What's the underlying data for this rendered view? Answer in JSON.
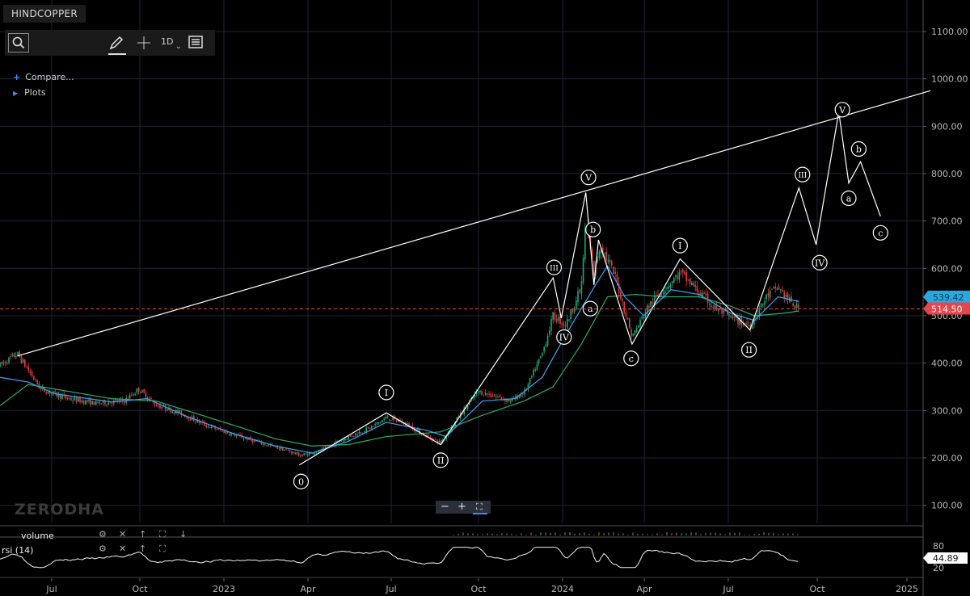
{
  "symbol": "HINDCOPPER",
  "toolbar": {
    "interval": "1D",
    "icons": [
      "search-icon",
      "draw-pencil-icon",
      "crosshair-icon",
      "chevron-down-icon",
      "list-icon"
    ]
  },
  "links": {
    "compare": "Compare...",
    "plots": "Plots"
  },
  "watermark": "ZERODHA",
  "zoom_controls": {
    "minus": "−",
    "plus": "+",
    "fullscreen": "⛶"
  },
  "indicators": [
    {
      "label": "volume",
      "icons": [
        "gear-icon",
        "close-icon",
        "arrow-up-icon",
        "expand-icon",
        "arrow-down-icon"
      ]
    },
    {
      "label": "rsi (14)",
      "icons": [
        "gear-icon",
        "close-icon",
        "arrow-up-icon",
        "expand-icon"
      ]
    }
  ],
  "colors": {
    "background": "#000000",
    "grid": "#1e2433",
    "candle_up": "#19a979",
    "candle_down": "#e0393e",
    "ma_fast": "#3da4f5",
    "ma_slow": "#23b06a",
    "drawing": "#ffffff",
    "last_price_tag": "#e5454b",
    "hover_price_tag": "#29a8e0"
  },
  "chart_data": {
    "type": "candlestick",
    "xaxis_ticks": [
      "Jul",
      "Oct",
      "2023",
      "Apr",
      "Jul",
      "Oct",
      "2024",
      "Apr",
      "Jul",
      "Oct",
      "2025"
    ],
    "yaxis_ticks": [
      "1100.00",
      "1000.00",
      "900.00",
      "800.00",
      "700.00",
      "600.00",
      "500.00",
      "400.00",
      "300.00",
      "200.00",
      "100.00"
    ],
    "ylim": [
      40,
      1140
    ],
    "last_price": 514.5,
    "last_price_label": "514.50",
    "hover_price_label": "539.42",
    "rsi": {
      "ticks": [
        "80",
        "20"
      ],
      "current": 44.89,
      "current_label": "44.89"
    },
    "trendline": [
      {
        "x": "2022-05-20",
        "y": 415
      },
      {
        "x": "2025-02-20",
        "y": 975
      }
    ],
    "elliott_path": [
      {
        "x": "2023-03-27",
        "y": 185,
        "label": "0"
      },
      {
        "x": "2023-07-01",
        "y": 295,
        "label": "I"
      },
      {
        "x": "2023-08-30",
        "y": 228,
        "label": "II"
      },
      {
        "x": "2024-01-01",
        "y": 580,
        "label": "III"
      },
      {
        "x": "2024-01-10",
        "y": 495,
        "label": "IV"
      },
      {
        "x": "2024-02-06",
        "y": 760,
        "label": "V"
      },
      {
        "x": "2024-02-15",
        "y": 565,
        "label": "a"
      },
      {
        "x": "2024-02-20",
        "y": 660,
        "label": "b"
      },
      {
        "x": "2024-03-28",
        "y": 440,
        "label": "c"
      },
      {
        "x": "2024-05-20",
        "y": 620,
        "label": "I"
      },
      {
        "x": "2024-08-05",
        "y": 470,
        "label": "II"
      },
      {
        "x": "2024-09-28",
        "y": 770,
        "label": "III"
      },
      {
        "x": "2024-10-17",
        "y": 650,
        "label": "IV"
      },
      {
        "x": "2024-11-11",
        "y": 930,
        "label": "V"
      },
      {
        "x": "2024-11-22",
        "y": 780,
        "label": "a"
      },
      {
        "x": "2024-12-05",
        "y": 825,
        "label": "b"
      },
      {
        "x": "2024-12-27",
        "y": 710,
        "label": "c"
      }
    ],
    "wave_labels": [
      {
        "text": "0",
        "x": "2023-03-29",
        "y": 150
      },
      {
        "text": "I",
        "x": "2023-07-01",
        "y": 338
      },
      {
        "text": "II",
        "x": "2023-08-30",
        "y": 195
      },
      {
        "text": "III",
        "x": "2024-01-02",
        "y": 602
      },
      {
        "text": "IV",
        "x": "2024-01-13",
        "y": 455
      },
      {
        "text": "V",
        "x": "2024-02-09",
        "y": 792
      },
      {
        "text": "a",
        "x": "2024-02-11",
        "y": 515
      },
      {
        "text": "b",
        "x": "2024-02-14",
        "y": 682
      },
      {
        "text": "c",
        "x": "2024-03-27",
        "y": 410
      },
      {
        "text": "I",
        "x": "2024-05-20",
        "y": 648
      },
      {
        "text": "II",
        "x": "2024-08-04",
        "y": 428
      },
      {
        "text": "III",
        "x": "2024-10-02",
        "y": 798
      },
      {
        "text": "IV",
        "x": "2024-10-21",
        "y": 612
      },
      {
        "text": "V",
        "x": "2024-11-15",
        "y": 935
      },
      {
        "text": "b",
        "x": "2024-12-03",
        "y": 852
      },
      {
        "text": "a",
        "x": "2024-11-22",
        "y": 748
      },
      {
        "text": "c",
        "x": "2024-12-27",
        "y": 675
      }
    ],
    "price_path": [
      [
        "2022-05-01",
        395
      ],
      [
        "2022-05-20",
        420
      ],
      [
        "2022-06-15",
        345
      ],
      [
        "2022-07-15",
        325
      ],
      [
        "2022-08-15",
        315
      ],
      [
        "2022-09-15",
        320
      ],
      [
        "2022-10-01",
        345
      ],
      [
        "2022-10-20",
        312
      ],
      [
        "2022-11-15",
        295
      ],
      [
        "2022-12-15",
        268
      ],
      [
        "2023-01-15",
        248
      ],
      [
        "2023-02-15",
        230
      ],
      [
        "2023-03-15",
        215
      ],
      [
        "2023-03-28",
        205
      ],
      [
        "2023-04-20",
        215
      ],
      [
        "2023-05-15",
        240
      ],
      [
        "2023-06-15",
        265
      ],
      [
        "2023-07-01",
        285
      ],
      [
        "2023-07-20",
        275
      ],
      [
        "2023-08-10",
        250
      ],
      [
        "2023-08-30",
        232
      ],
      [
        "2023-09-20",
        290
      ],
      [
        "2023-10-10",
        340
      ],
      [
        "2023-10-30",
        330
      ],
      [
        "2023-11-15",
        320
      ],
      [
        "2023-12-01",
        340
      ],
      [
        "2023-12-20",
        420
      ],
      [
        "2024-01-01",
        500
      ],
      [
        "2024-01-15",
        480
      ],
      [
        "2024-02-01",
        560
      ],
      [
        "2024-02-06",
        700
      ],
      [
        "2024-02-15",
        590
      ],
      [
        "2024-02-22",
        650
      ],
      [
        "2024-03-10",
        580
      ],
      [
        "2024-03-28",
        455
      ],
      [
        "2024-04-15",
        520
      ],
      [
        "2024-05-01",
        555
      ],
      [
        "2024-05-20",
        590
      ],
      [
        "2024-06-10",
        550
      ],
      [
        "2024-06-25",
        520
      ],
      [
        "2024-07-15",
        495
      ],
      [
        "2024-08-05",
        480
      ],
      [
        "2024-08-25",
        545
      ],
      [
        "2024-09-05",
        560
      ],
      [
        "2024-09-20",
        525
      ],
      [
        "2024-09-28",
        515
      ]
    ],
    "ma_fast": [
      [
        "2022-05-01",
        370
      ],
      [
        "2022-06-01",
        360
      ],
      [
        "2022-07-01",
        335
      ],
      [
        "2022-09-01",
        318
      ],
      [
        "2022-10-10",
        325
      ],
      [
        "2022-11-20",
        290
      ],
      [
        "2023-01-15",
        250
      ],
      [
        "2023-03-01",
        225
      ],
      [
        "2023-04-10",
        210
      ],
      [
        "2023-05-20",
        235
      ],
      [
        "2023-07-01",
        275
      ],
      [
        "2023-08-15",
        258
      ],
      [
        "2023-09-05",
        245
      ],
      [
        "2023-10-15",
        320
      ],
      [
        "2023-11-20",
        325
      ],
      [
        "2023-12-20",
        370
      ],
      [
        "2024-01-15",
        460
      ],
      [
        "2024-02-15",
        560
      ],
      [
        "2024-03-01",
        605
      ],
      [
        "2024-03-20",
        540
      ],
      [
        "2024-04-10",
        500
      ],
      [
        "2024-05-10",
        555
      ],
      [
        "2024-06-10",
        545
      ],
      [
        "2024-07-15",
        505
      ],
      [
        "2024-08-10",
        490
      ],
      [
        "2024-09-05",
        540
      ],
      [
        "2024-09-28",
        530
      ]
    ],
    "ma_slow": [
      [
        "2022-05-01",
        310
      ],
      [
        "2022-06-01",
        355
      ],
      [
        "2022-07-01",
        345
      ],
      [
        "2022-09-01",
        325
      ],
      [
        "2022-10-20",
        320
      ],
      [
        "2022-12-01",
        295
      ],
      [
        "2023-01-20",
        265
      ],
      [
        "2023-03-01",
        240
      ],
      [
        "2023-04-10",
        225
      ],
      [
        "2023-05-20",
        228
      ],
      [
        "2023-07-01",
        245
      ],
      [
        "2023-08-30",
        255
      ],
      [
        "2023-10-15",
        290
      ],
      [
        "2023-11-30",
        320
      ],
      [
        "2024-01-01",
        350
      ],
      [
        "2024-02-01",
        440
      ],
      [
        "2024-03-01",
        540
      ],
      [
        "2024-04-01",
        545
      ],
      [
        "2024-05-01",
        540
      ],
      [
        "2024-06-10",
        540
      ],
      [
        "2024-07-15",
        520
      ],
      [
        "2024-08-10",
        500
      ],
      [
        "2024-09-10",
        505
      ],
      [
        "2024-09-28",
        510
      ]
    ]
  }
}
